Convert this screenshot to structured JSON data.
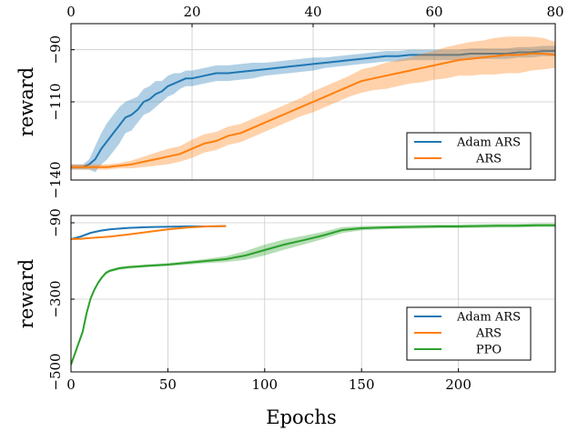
{
  "xlabel": "Epochs",
  "colors": {
    "adam_ars": "#1f77b4",
    "ars": "#ff7f0e",
    "ppo": "#2ca02c",
    "grid": "#cccccc",
    "axis": "#000000"
  },
  "chart_data": [
    {
      "type": "line",
      "panel": "top",
      "ylabel": "reward",
      "xlim": [
        0,
        80
      ],
      "ylim": [
        -140,
        -80
      ],
      "xticks": [
        0,
        20,
        40,
        60,
        80
      ],
      "yticks": [
        -140,
        -110,
        -90
      ],
      "xtick_position": "top",
      "grid": true,
      "legend": "bottom-right",
      "series": [
        {
          "name": "Adam ARS",
          "color": "#1f77b4",
          "x": [
            0,
            1,
            2,
            3,
            4,
            5,
            6,
            7,
            8,
            9,
            10,
            11,
            12,
            13,
            14,
            15,
            16,
            17,
            18,
            19,
            20,
            22,
            24,
            26,
            28,
            30,
            32,
            34,
            36,
            38,
            40,
            42,
            44,
            46,
            48,
            50,
            52,
            54,
            56,
            58,
            60,
            62,
            64,
            66,
            68,
            70,
            72,
            74,
            76,
            78,
            80
          ],
          "y": [
            -135,
            -135,
            -135,
            -134,
            -132,
            -128,
            -125,
            -122,
            -119,
            -116,
            -115,
            -113,
            -110,
            -109,
            -107,
            -106,
            -104,
            -103,
            -102,
            -101,
            -101,
            -100,
            -99,
            -99,
            -98.5,
            -98,
            -97.5,
            -97,
            -96.5,
            -96,
            -95.5,
            -95,
            -94.5,
            -94,
            -93.5,
            -93,
            -92.5,
            -92.5,
            -92,
            -92,
            -92,
            -92,
            -92,
            -91.5,
            -91.5,
            -91.5,
            -91.5,
            -91,
            -91,
            -90.5,
            -90.5
          ],
          "band": [
            1,
            1,
            1,
            2,
            5,
            6,
            7,
            7,
            7,
            6,
            6,
            5,
            5,
            5,
            5,
            4,
            4,
            4,
            3,
            3,
            3,
            3,
            3,
            3,
            3,
            3,
            2.5,
            2.5,
            2.5,
            2.5,
            2.5,
            2,
            2,
            2,
            2,
            2,
            2,
            2,
            2,
            2,
            2,
            2,
            2,
            2,
            2,
            2,
            2,
            2,
            2,
            2,
            2
          ]
        },
        {
          "name": "ARS",
          "color": "#ff7f0e",
          "x": [
            0,
            2,
            4,
            6,
            8,
            10,
            12,
            14,
            16,
            18,
            20,
            22,
            24,
            26,
            28,
            30,
            32,
            34,
            36,
            38,
            40,
            42,
            44,
            46,
            48,
            50,
            52,
            54,
            56,
            58,
            60,
            62,
            64,
            66,
            68,
            70,
            72,
            74,
            76,
            78,
            80
          ],
          "y": [
            -135,
            -135,
            -135,
            -135,
            -134.5,
            -134,
            -133,
            -132,
            -131,
            -130,
            -128,
            -126,
            -125,
            -123,
            -122,
            -120,
            -118,
            -116,
            -114,
            -112,
            -110,
            -108,
            -106,
            -104,
            -102,
            -101,
            -100,
            -99,
            -98,
            -97,
            -96,
            -95,
            -94,
            -93.5,
            -93,
            -92.5,
            -92,
            -92,
            -91.5,
            -91.5,
            -92
          ],
          "band": [
            1,
            1,
            1,
            1,
            1,
            1.5,
            2,
            2.5,
            3,
            3,
            3.5,
            3.5,
            3.5,
            3.5,
            3.5,
            3.5,
            3.5,
            3.5,
            3.5,
            3.5,
            4,
            4,
            4,
            4,
            4.5,
            4.5,
            5,
            5,
            5,
            5.5,
            5.5,
            6,
            6,
            6.5,
            6.5,
            7,
            7,
            7,
            6.5,
            6,
            5
          ]
        }
      ]
    },
    {
      "type": "line",
      "panel": "bottom",
      "ylabel": "reward",
      "xlim": [
        0,
        250
      ],
      "ylim": [
        -500,
        -70
      ],
      "xticks": [
        0,
        50,
        100,
        150,
        200
      ],
      "yticks": [
        -500,
        -300,
        -90
      ],
      "xtick_position": "bottom",
      "grid": true,
      "legend": "bottom-right",
      "series": [
        {
          "name": "Adam ARS",
          "color": "#1f77b4",
          "x": [
            0,
            5,
            10,
            15,
            20,
            25,
            30,
            40,
            50,
            60,
            70,
            80
          ],
          "y": [
            -135,
            -128,
            -118,
            -112,
            -108,
            -106,
            -104,
            -102,
            -101,
            -100,
            -100,
            -99
          ],
          "band": [
            2,
            3,
            3,
            3,
            2,
            2,
            2,
            2,
            2,
            2,
            2,
            2
          ]
        },
        {
          "name": "ARS",
          "color": "#ff7f0e",
          "x": [
            0,
            5,
            10,
            15,
            20,
            25,
            30,
            40,
            50,
            60,
            70,
            80
          ],
          "y": [
            -135,
            -134,
            -132,
            -130,
            -128,
            -125,
            -122,
            -115,
            -108,
            -103,
            -100,
            -99
          ],
          "band": [
            2,
            2,
            2,
            2,
            2,
            2,
            2,
            2,
            2,
            2,
            2,
            2
          ]
        },
        {
          "name": "PPO",
          "color": "#2ca02c",
          "x": [
            0,
            2,
            4,
            6,
            8,
            10,
            12,
            14,
            16,
            18,
            20,
            25,
            30,
            40,
            50,
            60,
            70,
            80,
            90,
            100,
            110,
            120,
            130,
            140,
            150,
            160,
            170,
            180,
            190,
            200,
            210,
            220,
            230,
            240,
            250
          ],
          "y": [
            -480,
            -450,
            -420,
            -390,
            -340,
            -300,
            -275,
            -255,
            -240,
            -228,
            -222,
            -215,
            -212,
            -208,
            -205,
            -200,
            -195,
            -190,
            -180,
            -165,
            -150,
            -138,
            -125,
            -110,
            -105,
            -103,
            -102,
            -101,
            -100,
            -100,
            -99,
            -98,
            -98,
            -97,
            -97
          ],
          "band": [
            4,
            4,
            4,
            4,
            4,
            4,
            4,
            4,
            4,
            4,
            4,
            4,
            4,
            4,
            4,
            5,
            6,
            8,
            12,
            15,
            14,
            12,
            10,
            8,
            6,
            5,
            5,
            5,
            5,
            5,
            5,
            5,
            5,
            5,
            5
          ]
        }
      ]
    }
  ]
}
